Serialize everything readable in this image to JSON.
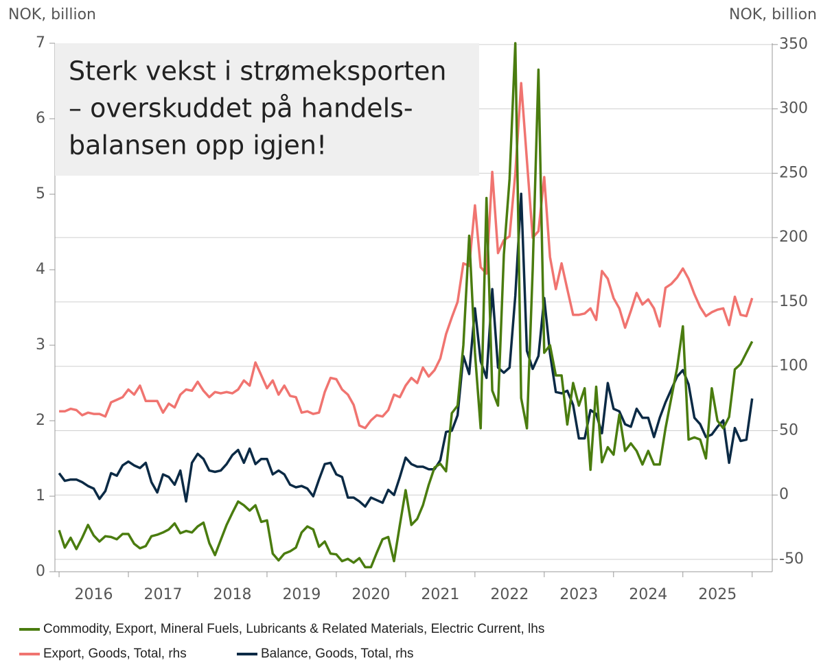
{
  "chart_data": {
    "type": "line",
    "title_lines": [
      "Sterk vekst i strømeksporten",
      "– overskuddet på handels-",
      "balansen opp igjen!"
    ],
    "ylabel": "NOK, billion",
    "y2label": "NOK, billion",
    "xlim": [
      2015.94,
      2026.29
    ],
    "xtick_marks": [
      2016,
      2017,
      2018,
      2019,
      2020,
      2021,
      2022,
      2023,
      2024,
      2025,
      2026
    ],
    "xticks": [
      {
        "value": 2016.5,
        "label": "2016"
      },
      {
        "value": 2017.5,
        "label": "2017"
      },
      {
        "value": 2018.5,
        "label": "2018"
      },
      {
        "value": 2019.5,
        "label": "2019"
      },
      {
        "value": 2020.5,
        "label": "2020"
      },
      {
        "value": 2021.5,
        "label": "2021"
      },
      {
        "value": 2022.5,
        "label": "2022"
      },
      {
        "value": 2023.5,
        "label": "2023"
      },
      {
        "value": 2024.5,
        "label": "2024"
      },
      {
        "value": 2025.5,
        "label": "2025"
      }
    ],
    "ylim": [
      0,
      7
    ],
    "yticks": [
      0,
      1,
      2,
      3,
      4,
      5,
      6,
      7
    ],
    "y2lim": [
      -59.6,
      351
    ],
    "y2ticks": [
      -50,
      0,
      50,
      100,
      150,
      200,
      250,
      300,
      350
    ],
    "grid": "y2",
    "x": [
      2016,
      2016.083,
      2016.167,
      2016.25,
      2016.333,
      2016.417,
      2016.5,
      2016.583,
      2016.667,
      2016.75,
      2016.833,
      2016.917,
      2017,
      2017.083,
      2017.167,
      2017.25,
      2017.333,
      2017.417,
      2017.5,
      2017.583,
      2017.667,
      2017.75,
      2017.833,
      2017.917,
      2018,
      2018.083,
      2018.167,
      2018.25,
      2018.333,
      2018.417,
      2018.5,
      2018.583,
      2018.667,
      2018.75,
      2018.833,
      2018.917,
      2019,
      2019.083,
      2019.167,
      2019.25,
      2019.333,
      2019.417,
      2019.5,
      2019.583,
      2019.667,
      2019.75,
      2019.833,
      2019.917,
      2020,
      2020.083,
      2020.167,
      2020.25,
      2020.333,
      2020.417,
      2020.5,
      2020.583,
      2020.667,
      2020.75,
      2020.833,
      2020.917,
      2021,
      2021.083,
      2021.167,
      2021.25,
      2021.333,
      2021.417,
      2021.5,
      2021.583,
      2021.667,
      2021.75,
      2021.833,
      2021.917,
      2022,
      2022.083,
      2022.167,
      2022.25,
      2022.333,
      2022.417,
      2022.5,
      2022.583,
      2022.667,
      2022.75,
      2022.833,
      2022.917,
      2023,
      2023.083,
      2023.167,
      2023.25,
      2023.333,
      2023.417,
      2023.5,
      2023.583,
      2023.667,
      2023.75,
      2023.833,
      2023.917,
      2024,
      2024.083,
      2024.167,
      2024.25,
      2024.333,
      2024.417,
      2024.5,
      2024.583,
      2024.667,
      2024.75,
      2024.833,
      2024.917,
      2025,
      2025.083,
      2025.167,
      2025.25,
      2025.333,
      2025.417,
      2025.5,
      2025.583,
      2025.667,
      2025.75,
      2025.833,
      2025.917,
      2026
    ],
    "series": [
      {
        "name": "Commodity, Export, Mineral Fuels, Lubricants & Related Materials, Electric Current, lhs",
        "color": "#4a7c0f",
        "axis": "y",
        "values": [
          0.55,
          0.32,
          0.45,
          0.3,
          0.45,
          0.62,
          0.48,
          0.4,
          0.47,
          0.46,
          0.43,
          0.5,
          0.5,
          0.37,
          0.31,
          0.34,
          0.47,
          0.49,
          0.52,
          0.56,
          0.64,
          0.51,
          0.54,
          0.52,
          0.6,
          0.65,
          0.38,
          0.22,
          0.42,
          0.62,
          0.78,
          0.93,
          0.88,
          0.81,
          0.88,
          0.66,
          0.68,
          0.24,
          0.15,
          0.24,
          0.27,
          0.32,
          0.52,
          0.6,
          0.56,
          0.33,
          0.4,
          0.24,
          0.23,
          0.14,
          0.17,
          0.12,
          0.18,
          0.06,
          0.06,
          0.25,
          0.43,
          0.46,
          0.14,
          0.62,
          1.08,
          0.62,
          0.7,
          0.88,
          1.15,
          1.38,
          1.43,
          1.33,
          2.1,
          2.2,
          3.0,
          4.45,
          2.9,
          1.9,
          4.95,
          2.4,
          2.2,
          4.2,
          5.2,
          7.0,
          2.3,
          1.9,
          4.0,
          6.65,
          2.9,
          3.0,
          2.6,
          2.6,
          1.95,
          2.5,
          2.2,
          2.43,
          1.35,
          2.45,
          1.45,
          1.65,
          1.55,
          2.08,
          1.6,
          1.7,
          1.6,
          1.42,
          1.6,
          1.42,
          1.42,
          1.9,
          2.3,
          2.7,
          3.25,
          1.75,
          1.78,
          1.75,
          1.5,
          2.43,
          2.0,
          1.9,
          2.05,
          2.68,
          2.75,
          2.9,
          3.05
        ]
      },
      {
        "name": "Export, Goods, Total, rhs",
        "color": "#f07470",
        "axis": "y2",
        "values": [
          65,
          65,
          67,
          66,
          62,
          64,
          63,
          63,
          61,
          72,
          74,
          76,
          82,
          78,
          85,
          73,
          73,
          73,
          64,
          71,
          68,
          78,
          82,
          81,
          88,
          81,
          76,
          80,
          79,
          80,
          79,
          82,
          89,
          85,
          103,
          93,
          83,
          89,
          78,
          85,
          77,
          76,
          64,
          65,
          63,
          64,
          80,
          91,
          90,
          82,
          78,
          70,
          54,
          52,
          58,
          62,
          61,
          66,
          78,
          76,
          85,
          91,
          87,
          99,
          92,
          97,
          106,
          125,
          138,
          150,
          180,
          178,
          225,
          177,
          172,
          251,
          188,
          198,
          201,
          250,
          320,
          260,
          200,
          205,
          247,
          185,
          160,
          180,
          160,
          140,
          140,
          141,
          145,
          136,
          174,
          168,
          153,
          145,
          130,
          143,
          157,
          148,
          152,
          145,
          131,
          161,
          164,
          169,
          176,
          168,
          156,
          146,
          139,
          142,
          144,
          145,
          132,
          154,
          140,
          139,
          153
        ]
      },
      {
        "name": "Balance, Goods, Total, rhs",
        "color": "#0b2a45",
        "axis": "y2",
        "values": [
          17,
          11,
          12,
          12,
          10,
          7,
          5,
          -3,
          3,
          17,
          15,
          23,
          26,
          23,
          21,
          25,
          10,
          2,
          16,
          14,
          8,
          19,
          -5,
          25,
          32,
          28,
          19,
          18,
          19,
          24,
          31,
          35,
          25,
          36,
          24,
          28,
          28,
          16,
          19,
          16,
          8,
          6,
          7,
          5,
          -1,
          12,
          24,
          25,
          16,
          14,
          -2,
          -2,
          -5,
          -9,
          -2,
          -4,
          -6,
          4,
          0,
          14,
          29,
          24,
          22,
          22,
          20,
          20,
          27,
          49,
          50,
          62,
          108,
          94,
          145,
          104,
          91,
          160,
          99,
          95,
          99,
          155,
          234,
          112,
          98,
          108,
          153,
          110,
          80,
          79,
          81,
          70,
          44,
          44,
          66,
          63,
          48,
          87,
          67,
          65,
          55,
          53,
          67,
          60,
          60,
          45,
          60,
          72,
          82,
          92,
          97,
          86,
          60,
          55,
          45,
          47,
          53,
          58,
          25,
          52,
          42,
          43,
          75
        ]
      }
    ]
  }
}
